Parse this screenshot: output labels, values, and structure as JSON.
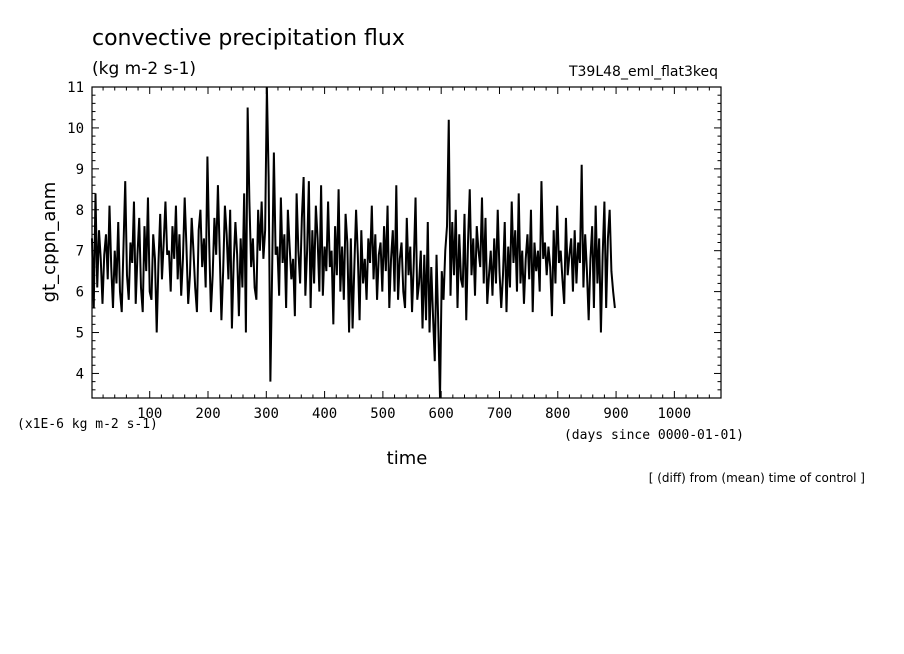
{
  "chart_data": {
    "type": "line",
    "title": "convective precipitation flux",
    "units": "(kg m-2 s-1)",
    "run_label": "T39L48_eml_flat3keq",
    "ylabel": "gt_cppn_anm",
    "xlabel": "time",
    "x_units": "(days since 0000-01-01)",
    "y_scale_note": "(x1E-6 kg m-2 s-1)",
    "footnote": "[ (diff) from (mean) time of control ]",
    "xlim": [
      1,
      1080
    ],
    "ylim": [
      3.4,
      11
    ],
    "x_ticks": [
      "100",
      "200",
      "300",
      "400",
      "500",
      "600",
      "700",
      "800",
      "900",
      "1000"
    ],
    "y_ticks": [
      "4",
      "5",
      "6",
      "7",
      "8",
      "9",
      "10",
      "11"
    ],
    "grid": false,
    "line_color": "#000000",
    "series": [
      {
        "x_start": 1,
        "x_step": 3,
        "values": [
          7.3,
          5.6,
          8.4,
          6.1,
          7.5,
          6.8,
          5.7,
          6.9,
          7.4,
          6.3,
          8.1,
          6.6,
          5.6,
          7.0,
          6.2,
          7.7,
          6.0,
          5.5,
          7.1,
          8.7,
          6.4,
          5.8,
          7.2,
          6.7,
          8.2,
          5.7,
          6.9,
          7.8,
          6.1,
          5.5,
          7.6,
          6.5,
          8.3,
          6.0,
          5.8,
          7.4,
          6.8,
          5.0,
          6.7,
          7.9,
          6.3,
          7.2,
          8.2,
          6.9,
          7.0,
          6.0,
          7.6,
          6.8,
          8.1,
          6.3,
          7.4,
          5.9,
          6.8,
          8.3,
          7.1,
          5.7,
          6.4,
          7.8,
          7.0,
          6.1,
          5.5,
          7.5,
          8.0,
          6.6,
          7.3,
          6.1,
          9.3,
          7.2,
          5.5,
          6.4,
          7.8,
          6.9,
          8.6,
          7.0,
          5.3,
          6.5,
          8.1,
          7.4,
          6.3,
          8.0,
          5.1,
          6.7,
          7.7,
          6.9,
          5.4,
          7.3,
          6.1,
          8.4,
          5.0,
          10.5,
          8.2,
          6.6,
          7.3,
          6.1,
          5.8,
          8.0,
          7.0,
          8.2,
          6.8,
          7.5,
          11.0,
          8.8,
          3.8,
          6.5,
          9.4,
          6.9,
          7.1,
          5.9,
          8.3,
          6.7,
          7.4,
          5.6,
          8.0,
          7.1,
          6.3,
          6.8,
          5.4,
          8.4,
          7.0,
          6.2,
          7.8,
          8.8,
          5.9,
          7.0,
          8.7,
          5.6,
          7.5,
          6.2,
          8.1,
          7.3,
          6.0,
          8.6,
          5.9,
          7.1,
          6.5,
          8.2,
          6.6,
          7.0,
          5.2,
          7.6,
          6.4,
          8.5,
          6.0,
          7.1,
          5.8,
          7.9,
          7.2,
          5.0,
          7.3,
          5.1,
          6.6,
          8.0,
          6.9,
          5.3,
          7.5,
          6.2,
          6.8,
          5.8,
          7.3,
          6.7,
          8.1,
          6.3,
          7.4,
          5.8,
          6.9,
          7.2,
          6.0,
          7.6,
          6.5,
          8.1,
          5.6,
          6.8,
          7.5,
          6.0,
          8.6,
          5.8,
          6.8,
          7.2,
          6.0,
          5.6,
          7.8,
          6.4,
          7.1,
          5.5,
          6.7,
          8.3,
          5.8,
          6.2,
          7.0,
          5.1,
          6.9,
          5.3,
          7.7,
          5.0,
          6.6,
          5.4,
          4.3,
          6.9,
          5.2,
          3.4,
          6.5,
          5.8,
          7.0,
          7.6,
          10.2,
          5.9,
          7.7,
          6.4,
          8.0,
          5.6,
          7.4,
          6.3,
          6.1,
          7.9,
          5.3,
          7.2,
          8.5,
          6.4,
          7.3,
          5.9,
          7.6,
          7.0,
          6.6,
          8.3,
          6.2,
          7.8,
          5.7,
          6.4,
          7.0,
          5.9,
          7.3,
          6.2,
          8.0,
          6.5,
          5.6,
          6.4,
          7.7,
          5.5,
          7.1,
          6.1,
          8.2,
          6.7,
          7.5,
          6.0,
          8.4,
          6.2,
          7.0,
          5.7,
          6.8,
          7.4,
          6.3,
          8.0,
          5.5,
          7.2,
          6.5,
          7.0,
          6.0,
          8.7,
          6.8,
          7.2,
          6.4,
          7.1,
          6.6,
          5.4,
          7.5,
          6.2,
          8.1,
          6.7,
          7.0,
          6.3,
          5.7,
          7.8,
          6.4,
          6.9,
          7.3,
          6.0,
          7.5,
          6.2,
          7.2,
          6.7,
          9.1,
          6.1,
          7.4,
          6.5,
          5.3,
          6.8,
          7.6,
          5.6,
          8.1,
          6.2,
          7.3,
          5.0,
          6.9,
          8.2,
          5.6,
          7.3,
          8.0,
          6.5,
          6.0,
          5.6
        ]
      }
    ]
  }
}
